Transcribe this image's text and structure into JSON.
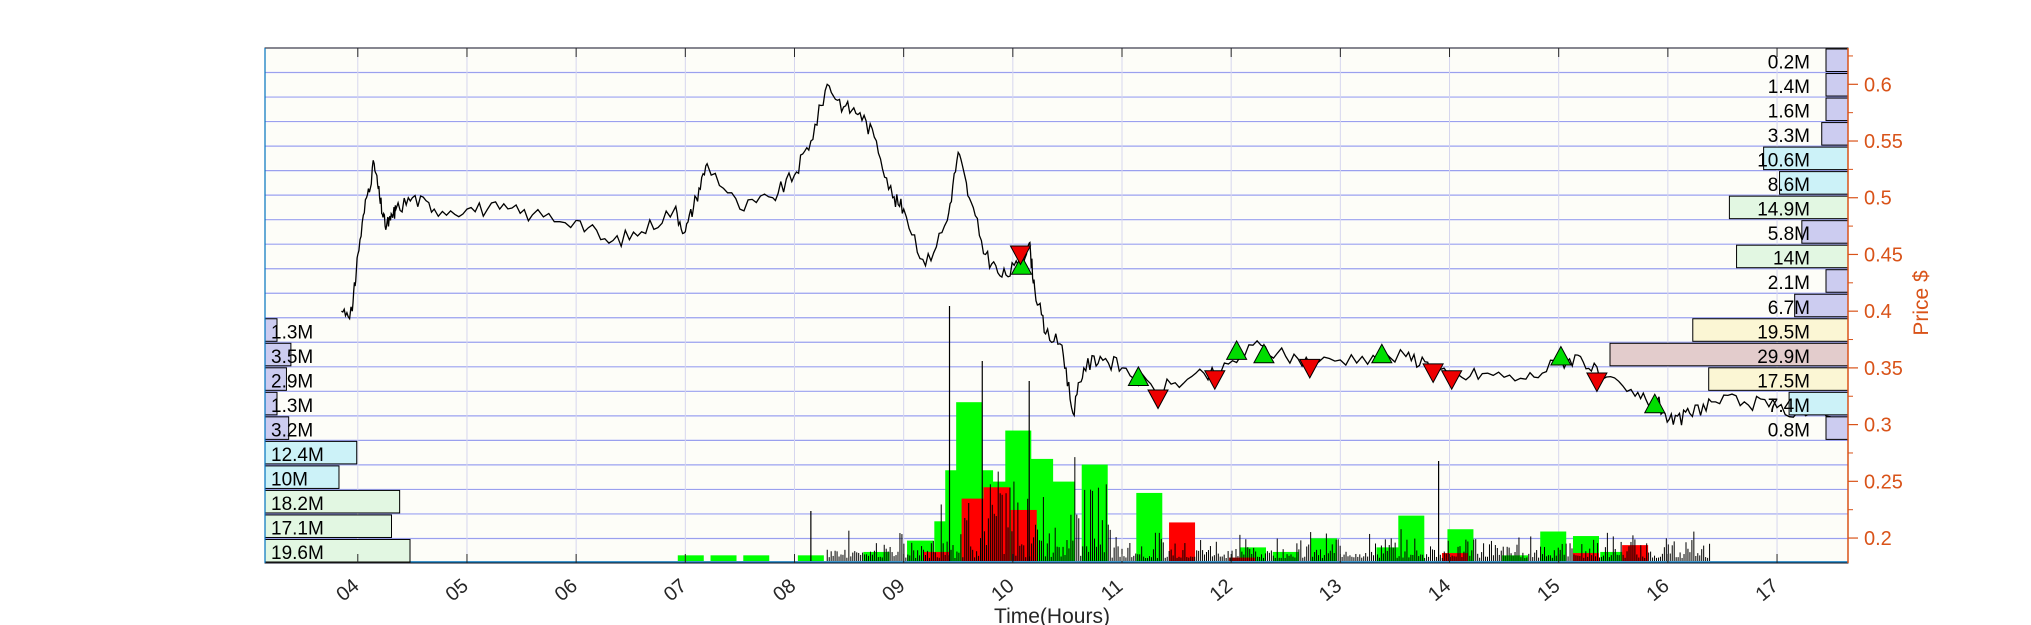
{
  "chart_data": {
    "type": "line",
    "title": "",
    "xlabel": "Time(Hours)",
    "ylabel": "Price $",
    "xlim": [
      3.15,
      17.65
    ],
    "ylim": [
      0.178,
      0.632
    ],
    "x_ticks": [
      "04",
      "05",
      "06",
      "07",
      "08",
      "09",
      "10",
      "11",
      "12",
      "13",
      "14",
      "15",
      "16",
      "17"
    ],
    "y_ticks": [
      "0.2",
      "0.25",
      "0.3",
      "0.35",
      "0.4",
      "0.45",
      "0.5",
      "0.55",
      "0.6"
    ],
    "grid": "horizontal price bands and vertical hour lines",
    "colors": {
      "price_line": "#000000",
      "right_axis": "#d95319",
      "buy_volume": "#00ff00",
      "sell_volume": "#ff0000",
      "buy_marker": "#00dd00",
      "sell_marker": "#ee0000",
      "band_line": "#9aa0ee"
    },
    "price_series": {
      "name": "Price",
      "x": [
        3.85,
        3.95,
        4.0,
        4.08,
        4.15,
        4.2,
        4.25,
        4.3,
        4.35,
        4.5,
        4.7,
        5.0,
        5.3,
        5.6,
        6.0,
        6.3,
        6.6,
        6.9,
        7.0,
        7.1,
        7.2,
        7.5,
        7.8,
        8.0,
        8.15,
        8.3,
        8.45,
        8.6,
        8.75,
        8.9,
        9.0,
        9.2,
        9.4,
        9.5,
        9.6,
        9.75,
        9.9,
        10.05,
        10.15,
        10.2,
        10.3,
        10.45,
        10.55,
        10.65,
        10.8,
        11.0,
        11.3,
        11.6,
        11.9,
        12.2,
        12.5,
        12.8,
        13.2,
        13.6,
        13.8,
        14.0,
        14.3,
        14.7,
        15.0,
        15.2,
        15.4,
        15.7,
        15.9,
        16.05,
        16.2,
        16.4,
        16.7,
        17.0,
        17.3,
        17.6
      ],
      "y": [
        0.4,
        0.4,
        0.45,
        0.5,
        0.53,
        0.5,
        0.475,
        0.48,
        0.49,
        0.5,
        0.49,
        0.49,
        0.49,
        0.485,
        0.48,
        0.46,
        0.47,
        0.49,
        0.47,
        0.5,
        0.53,
        0.49,
        0.5,
        0.52,
        0.55,
        0.6,
        0.58,
        0.575,
        0.55,
        0.5,
        0.49,
        0.44,
        0.48,
        0.54,
        0.5,
        0.45,
        0.43,
        0.44,
        0.46,
        0.42,
        0.38,
        0.37,
        0.31,
        0.35,
        0.36,
        0.35,
        0.33,
        0.34,
        0.345,
        0.37,
        0.36,
        0.355,
        0.36,
        0.36,
        0.355,
        0.34,
        0.345,
        0.34,
        0.355,
        0.36,
        0.34,
        0.325,
        0.32,
        0.3,
        0.31,
        0.32,
        0.32,
        0.315,
        0.31,
        0.305
      ]
    },
    "volume_series": {
      "buy": [
        {
          "x": 7.05,
          "h": 0.005
        },
        {
          "x": 7.35,
          "h": 0.005
        },
        {
          "x": 7.65,
          "h": 0.005
        },
        {
          "x": 8.15,
          "h": 0.005
        },
        {
          "x": 8.75,
          "h": 0.008
        },
        {
          "x": 9.15,
          "h": 0.018
        },
        {
          "x": 9.4,
          "h": 0.035
        },
        {
          "x": 9.5,
          "h": 0.08
        },
        {
          "x": 9.6,
          "h": 0.14
        },
        {
          "x": 9.7,
          "h": 0.08
        },
        {
          "x": 9.85,
          "h": 0.07
        },
        {
          "x": 10.05,
          "h": 0.115
        },
        {
          "x": 10.25,
          "h": 0.09
        },
        {
          "x": 10.45,
          "h": 0.07
        },
        {
          "x": 10.75,
          "h": 0.085
        },
        {
          "x": 11.25,
          "h": 0.06
        },
        {
          "x": 12.2,
          "h": 0.012
        },
        {
          "x": 12.5,
          "h": 0.008
        },
        {
          "x": 12.85,
          "h": 0.02
        },
        {
          "x": 13.45,
          "h": 0.012
        },
        {
          "x": 13.65,
          "h": 0.04
        },
        {
          "x": 14.1,
          "h": 0.028
        },
        {
          "x": 14.6,
          "h": 0.005
        },
        {
          "x": 14.95,
          "h": 0.026
        },
        {
          "x": 15.25,
          "h": 0.022
        },
        {
          "x": 15.5,
          "h": 0.008
        }
      ],
      "sell": [
        {
          "x": 9.3,
          "h": 0.008
        },
        {
          "x": 9.65,
          "h": 0.055
        },
        {
          "x": 9.85,
          "h": 0.065
        },
        {
          "x": 10.1,
          "h": 0.045
        },
        {
          "x": 11.55,
          "h": 0.034
        },
        {
          "x": 12.1,
          "h": 0.003
        },
        {
          "x": 14.05,
          "h": 0.007
        },
        {
          "x": 15.25,
          "h": 0.007
        },
        {
          "x": 15.7,
          "h": 0.014
        }
      ]
    },
    "buy_signals": [
      {
        "x": 10.08,
        "y": 0.44
      },
      {
        "x": 11.15,
        "y": 0.342
      },
      {
        "x": 12.05,
        "y": 0.365
      },
      {
        "x": 12.3,
        "y": 0.362
      },
      {
        "x": 13.38,
        "y": 0.362
      },
      {
        "x": 15.02,
        "y": 0.36
      },
      {
        "x": 15.88,
        "y": 0.318
      }
    ],
    "sell_signals": [
      {
        "x": 10.07,
        "y": 0.45
      },
      {
        "x": 11.33,
        "y": 0.323
      },
      {
        "x": 11.85,
        "y": 0.34
      },
      {
        "x": 12.72,
        "y": 0.35
      },
      {
        "x": 13.85,
        "y": 0.346
      },
      {
        "x": 14.02,
        "y": 0.34
      },
      {
        "x": 15.35,
        "y": 0.338
      }
    ],
    "volume_profile_left": [
      {
        "label": "1.3M",
        "value": 1.3,
        "color": "#ccccf0"
      },
      {
        "label": "3.5M",
        "value": 3.5,
        "color": "#ccccf0"
      },
      {
        "label": "2.9M",
        "value": 2.9,
        "color": "#ccccf0"
      },
      {
        "label": "1.3M",
        "value": 1.3,
        "color": "#ccccf0"
      },
      {
        "label": "3.2M",
        "value": 3.2,
        "color": "#ccccf0"
      },
      {
        "label": "12.4M",
        "value": 12.4,
        "color": "#ccf2f8"
      },
      {
        "label": "10M",
        "value": 10.0,
        "color": "#ccf2f8"
      },
      {
        "label": "18.2M",
        "value": 18.2,
        "color": "#e2f7e2"
      },
      {
        "label": "17.1M",
        "value": 17.1,
        "color": "#e2f7e2"
      },
      {
        "label": "19.6M",
        "value": 19.6,
        "color": "#e2f7e2"
      }
    ],
    "volume_profile_right": [
      {
        "label": "0.2M",
        "value": 0.2,
        "color": "#ccccf0"
      },
      {
        "label": "1.4M",
        "value": 1.4,
        "color": "#ccccf0"
      },
      {
        "label": "1.6M",
        "value": 1.6,
        "color": "#ccccf0"
      },
      {
        "label": "3.3M",
        "value": 3.3,
        "color": "#ccccf0"
      },
      {
        "label": "10.6M",
        "value": 10.6,
        "color": "#ccf2f8"
      },
      {
        "label": "8.6M",
        "value": 8.6,
        "color": "#ccf2f8"
      },
      {
        "label": "14.9M",
        "value": 14.9,
        "color": "#e2f7e2"
      },
      {
        "label": "5.8M",
        "value": 5.8,
        "color": "#ccccf0"
      },
      {
        "label": "14M",
        "value": 14.0,
        "color": "#e2f7e2"
      },
      {
        "label": "2.1M",
        "value": 2.1,
        "color": "#ccccf0"
      },
      {
        "label": "6.7M",
        "value": 6.7,
        "color": "#ccccf0"
      },
      {
        "label": "19.5M",
        "value": 19.5,
        "color": "#fbf6d4"
      },
      {
        "label": "29.9M",
        "value": 29.9,
        "color": "#e3cccc"
      },
      {
        "label": "17.5M",
        "value": 17.5,
        "color": "#fbf6d4"
      },
      {
        "label": "7.4M",
        "value": 7.4,
        "color": "#ccf2f8"
      },
      {
        "label": "0.8M",
        "value": 0.8,
        "color": "#ccccf0"
      }
    ]
  }
}
